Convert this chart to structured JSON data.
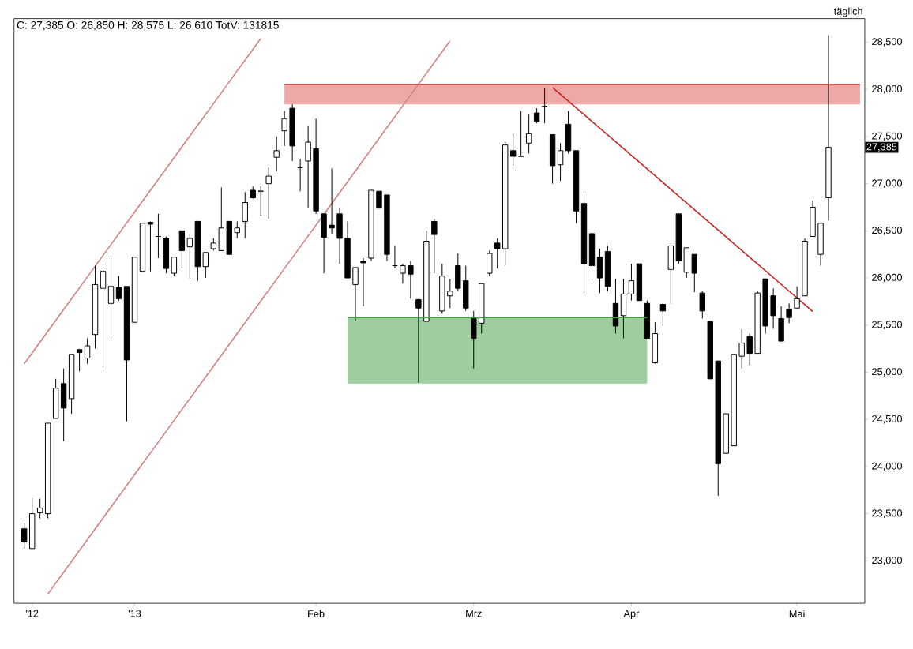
{
  "chart_data": {
    "type": "candlestick",
    "title": "C: 27,385 O: 26,850 H: 28,575 L: 26,610 TotV: 131815",
    "annotations": [
      "täglich",
      {
        "text": "27,385",
        "y": 27385
      }
    ],
    "categories": [
      null,
      "'12",
      null,
      null,
      null,
      null,
      null,
      null,
      null,
      null,
      null,
      null,
      null,
      null,
      "'13",
      null,
      null,
      null,
      null,
      null,
      null,
      null,
      null,
      null,
      null,
      null,
      null,
      null,
      null,
      null,
      null,
      null,
      null,
      null,
      null,
      null,
      null,
      "Feb",
      null,
      null,
      null,
      null,
      null,
      null,
      null,
      null,
      null,
      null,
      null,
      null,
      null,
      null,
      null,
      null,
      null,
      null,
      null,
      "Mrz",
      null,
      null,
      null,
      null,
      null,
      null,
      null,
      null,
      null,
      null,
      null,
      null,
      null,
      null,
      null,
      null,
      null,
      null,
      null,
      "Apr",
      null,
      null,
      null,
      null,
      null,
      null,
      null,
      null,
      null,
      null,
      null,
      null,
      null,
      null,
      null,
      null,
      null,
      null,
      null,
      null,
      "Mai",
      null,
      null,
      null,
      null,
      null,
      null,
      null,
      null
    ],
    "ohlc": [
      [
        23340,
        23400,
        23130,
        23200
      ],
      [
        23130,
        23660,
        23130,
        23500
      ],
      [
        23510,
        23660,
        23450,
        23560
      ],
      [
        23500,
        24460,
        23450,
        24460
      ],
      [
        24510,
        24930,
        24510,
        24830
      ],
      [
        24880,
        25040,
        24270,
        24620
      ],
      [
        24720,
        25190,
        24560,
        25190
      ],
      [
        25240,
        25240,
        25010,
        25210
      ],
      [
        25150,
        25360,
        25090,
        25280
      ],
      [
        25400,
        26130,
        25250,
        25930
      ],
      [
        25890,
        26150,
        25010,
        26070
      ],
      [
        25730,
        26210,
        25360,
        25910
      ],
      [
        25900,
        26020,
        25760,
        25780
      ],
      [
        25910,
        25910,
        24480,
        25130
      ],
      [
        25530,
        26220,
        25530,
        26220
      ],
      [
        26070,
        26580,
        26070,
        26580
      ],
      [
        26590,
        26600,
        26070,
        26570
      ],
      [
        26440,
        26680,
        26210,
        26440
      ],
      [
        26420,
        26440,
        26050,
        26100
      ],
      [
        26050,
        26220,
        26020,
        26220
      ],
      [
        26500,
        26500,
        26100,
        26290
      ],
      [
        26330,
        26470,
        25990,
        26420
      ],
      [
        26600,
        26600,
        25970,
        26120
      ],
      [
        26120,
        26270,
        26000,
        26270
      ],
      [
        26310,
        26420,
        26290,
        26370
      ],
      [
        26290,
        26960,
        26290,
        26530
      ],
      [
        26600,
        26600,
        26250,
        26250
      ],
      [
        26480,
        26600,
        26420,
        26530
      ],
      [
        26600,
        26910,
        26420,
        26800
      ],
      [
        26930,
        26970,
        26840,
        26850
      ],
      [
        26920,
        26970,
        26660,
        26920
      ],
      [
        27000,
        27170,
        26630,
        27080
      ],
      [
        27280,
        27500,
        27130,
        27350
      ],
      [
        27560,
        27770,
        27400,
        27690
      ],
      [
        27800,
        27840,
        27240,
        27400
      ],
      [
        27170,
        27260,
        26920,
        27170
      ],
      [
        27240,
        27610,
        26740,
        27440
      ],
      [
        27370,
        27690,
        26680,
        26710
      ],
      [
        26680,
        26680,
        26050,
        26430
      ],
      [
        26560,
        27160,
        26470,
        26530
      ],
      [
        26680,
        26740,
        26150,
        26420
      ],
      [
        26420,
        26600,
        26000,
        26000
      ],
      [
        25930,
        26110,
        25540,
        26110
      ],
      [
        26180,
        26210,
        25700,
        26160
      ],
      [
        26210,
        26930,
        26180,
        26930
      ],
      [
        26920,
        26920,
        26740,
        26740
      ],
      [
        26880,
        26880,
        26180,
        26250
      ],
      [
        26130,
        26340,
        26100,
        26130
      ],
      [
        26050,
        26150,
        25940,
        26130
      ],
      [
        26130,
        26180,
        25780,
        26040
      ],
      [
        25770,
        25780,
        24890,
        25680
      ],
      [
        25540,
        26500,
        25540,
        26390
      ],
      [
        26600,
        26630,
        26050,
        26460
      ],
      [
        25650,
        26150,
        25620,
        26020
      ],
      [
        25810,
        25990,
        25680,
        25860
      ],
      [
        26130,
        26260,
        25860,
        25890
      ],
      [
        25970,
        26130,
        25650,
        25680
      ],
      [
        25570,
        25650,
        25040,
        25360
      ],
      [
        25520,
        25940,
        25410,
        25940
      ],
      [
        26050,
        26290,
        26020,
        26260
      ],
      [
        26370,
        26420,
        26100,
        26310
      ],
      [
        26310,
        27450,
        26130,
        27410
      ],
      [
        27350,
        27530,
        27190,
        27290
      ],
      [
        27290,
        27770,
        27290,
        27290
      ],
      [
        27430,
        27740,
        27320,
        27530
      ],
      [
        27750,
        27800,
        27640,
        27660
      ],
      [
        27820,
        28010,
        27640,
        27820
      ],
      [
        27520,
        27520,
        27000,
        27190
      ],
      [
        27200,
        27430,
        27030,
        27350
      ],
      [
        27630,
        27770,
        27320,
        27350
      ],
      [
        27350,
        27350,
        26580,
        26710
      ],
      [
        26790,
        26920,
        25840,
        26150
      ],
      [
        26470,
        26470,
        25970,
        26130
      ],
      [
        26220,
        26310,
        25840,
        26000
      ],
      [
        26280,
        26340,
        25860,
        25910
      ],
      [
        25730,
        25990,
        25410,
        25490
      ],
      [
        25600,
        25990,
        25360,
        25830
      ],
      [
        25830,
        26150,
        25760,
        25970
      ],
      [
        26150,
        26150,
        25760,
        25760
      ],
      [
        25730,
        25760,
        25360,
        25360
      ],
      [
        25100,
        25530,
        25090,
        25410
      ],
      [
        25720,
        25730,
        25490,
        25650
      ],
      [
        26090,
        26340,
        25730,
        26340
      ],
      [
        26680,
        26680,
        26150,
        26180
      ],
      [
        26060,
        26320,
        26000,
        26320
      ],
      [
        26250,
        26250,
        25850,
        26050
      ],
      [
        25840,
        25860,
        25570,
        25650
      ],
      [
        25540,
        25540,
        24930,
        24930
      ],
      [
        25120,
        25120,
        23690,
        24030
      ],
      [
        24140,
        24560,
        24140,
        24560
      ],
      [
        24220,
        25190,
        24220,
        25190
      ],
      [
        25170,
        25460,
        25040,
        25310
      ],
      [
        25380,
        25410,
        25070,
        25200
      ],
      [
        25200,
        25860,
        25200,
        25840
      ],
      [
        25990,
        25990,
        25410,
        25490
      ],
      [
        25810,
        25890,
        25460,
        25600
      ],
      [
        25570,
        25700,
        25330,
        25330
      ],
      [
        25670,
        25730,
        25520,
        25580
      ],
      [
        25680,
        25910,
        25680,
        25780
      ],
      [
        25810,
        26420,
        25810,
        26390
      ],
      [
        26440,
        26820,
        26440,
        26750
      ],
      [
        26250,
        26580,
        26130,
        26580
      ],
      [
        26850,
        28575,
        26610,
        27385
      ],
      null,
      null,
      null,
      null
    ],
    "series": [
      {
        "type": "line",
        "color": "#d9534f",
        "upper": [
          null,
          null,
          null,
          null,
          null,
          null,
          null,
          null,
          null,
          null,
          null,
          null,
          null,
          null,
          null,
          null,
          null,
          null,
          null,
          null,
          null,
          null,
          null,
          null,
          null,
          null,
          null,
          null,
          null,
          null,
          null,
          null,
          null,
          28050,
          28050,
          28050,
          28050,
          28050,
          28050,
          28050,
          28050,
          28050,
          28050,
          28050,
          28050,
          28050,
          28050,
          28050,
          28050,
          28050,
          28050,
          28050,
          28050,
          28050,
          28050,
          28050,
          28050,
          28050,
          28050,
          28050,
          28050,
          28050,
          28050,
          28050,
          28050,
          28050,
          28050,
          28050,
          28050,
          28050,
          28050,
          28050,
          28050,
          28050,
          28050,
          28050,
          28050,
          28050,
          28050,
          28050,
          28050,
          28050,
          28050,
          28050,
          28050,
          28050,
          28050,
          28050,
          28050,
          28050,
          28050,
          28050,
          28050,
          28050,
          28050,
          28050,
          28050,
          28050,
          28050,
          28050,
          28050,
          28050,
          28050,
          28050,
          28050,
          28050,
          28050
        ],
        "values": [
          null,
          null,
          null,
          null,
          null,
          null,
          null,
          null,
          null,
          null,
          null,
          null,
          null,
          null,
          null,
          null,
          null,
          null,
          null,
          null,
          null,
          null,
          null,
          null,
          null,
          null,
          null,
          null,
          null,
          null,
          null,
          null,
          null,
          28050,
          28050,
          28050,
          28050,
          28050,
          28050,
          28050,
          28050,
          28050,
          28050,
          28050,
          28050,
          28050,
          28050,
          28050,
          28050,
          28050,
          28050,
          28050,
          28050,
          28050,
          28050,
          28050,
          28050,
          28050,
          28050,
          28050,
          28050,
          28050,
          28050,
          28050,
          28050,
          28050,
          28050,
          28050,
          28050,
          28050,
          28050,
          28050,
          28050,
          28050,
          28050,
          28050,
          28050,
          28050,
          28050,
          28050,
          28050,
          28050,
          28050,
          28050,
          28050,
          28050,
          28050,
          28050,
          28050,
          28050,
          28050,
          28050,
          28050,
          28050,
          28050,
          28050,
          28050,
          28050,
          28050,
          28050,
          28050,
          28050,
          28050,
          28050,
          28050,
          28050,
          28050
        ],
        "lower": [
          null,
          null,
          null,
          null,
          null,
          null,
          null,
          null,
          null,
          null,
          null,
          null,
          null,
          null,
          null,
          null,
          null,
          null,
          null,
          null,
          null,
          null,
          null,
          null,
          null,
          null,
          null,
          null,
          null,
          null,
          null,
          null,
          null,
          27840,
          27840,
          27840,
          27840,
          27840,
          27840,
          27840,
          27840,
          27840,
          27840,
          27840,
          27840,
          27840,
          27840,
          27840,
          27840,
          27840,
          27840,
          27840,
          27840,
          27840,
          27840,
          27840,
          27840,
          27840,
          27840,
          27840,
          27840,
          27840,
          27840,
          27840,
          27840,
          27840,
          27840,
          27840,
          27840,
          27840,
          27840,
          27840,
          27840,
          27840,
          27840,
          27840,
          27840,
          27840,
          27840,
          27840,
          27840,
          27840,
          27840,
          27840,
          27840,
          27840,
          27840,
          27840,
          27840,
          27840,
          27840,
          27840,
          27840,
          27840,
          27840,
          27840,
          27840,
          27840,
          27840,
          27840,
          27840,
          27840,
          27840,
          27840,
          27840,
          27840,
          27840
        ]
      },
      {
        "type": "line",
        "color": "#3d9e42",
        "upper": [
          null,
          null,
          null,
          null,
          null,
          null,
          null,
          null,
          null,
          null,
          null,
          null,
          null,
          null,
          null,
          null,
          null,
          null,
          null,
          null,
          null,
          null,
          null,
          null,
          null,
          null,
          null,
          null,
          null,
          null,
          null,
          null,
          null,
          null,
          null,
          null,
          null,
          null,
          null,
          null,
          null,
          25580,
          25580,
          25580,
          25580,
          25580,
          25580,
          25580,
          25580,
          25580,
          25580,
          25580,
          25580,
          25580,
          25580,
          25580,
          25580,
          25580,
          25580,
          25580,
          25580,
          25580,
          25580,
          25580,
          25580,
          25580,
          25580,
          25580,
          25580,
          25580,
          25580,
          25580,
          25580,
          25580,
          25580,
          25580,
          25580,
          25580,
          25580,
          25580,
          null,
          null,
          null,
          null,
          null,
          null,
          null,
          null,
          null,
          null,
          null,
          null,
          null,
          null,
          null,
          null,
          null,
          null,
          null,
          null,
          null,
          null,
          null,
          null,
          null,
          null,
          null
        ],
        "values": [
          null,
          null,
          null,
          null,
          null,
          null,
          null,
          null,
          null,
          null,
          null,
          null,
          null,
          null,
          null,
          null,
          null,
          null,
          null,
          null,
          null,
          null,
          null,
          null,
          null,
          null,
          null,
          null,
          null,
          null,
          null,
          null,
          null,
          null,
          null,
          null,
          null,
          null,
          null,
          null,
          null,
          25580,
          25580,
          25580,
          25580,
          25580,
          25580,
          25580,
          25580,
          25580,
          25580,
          25580,
          25580,
          25580,
          25580,
          25580,
          25580,
          25580,
          25580,
          25580,
          25580,
          25580,
          25580,
          25580,
          25580,
          25580,
          25580,
          25580,
          25580,
          25580,
          25580,
          25580,
          25580,
          25580,
          25580,
          25580,
          25580,
          25580,
          25580,
          25580,
          null,
          null,
          null,
          null,
          null,
          null,
          null,
          null,
          null,
          null,
          null,
          null,
          null,
          null,
          null,
          null,
          null,
          null,
          null,
          null,
          null,
          null,
          null,
          null,
          null,
          null,
          null
        ],
        "lower": [
          null,
          null,
          null,
          null,
          null,
          null,
          null,
          null,
          null,
          null,
          null,
          null,
          null,
          null,
          null,
          null,
          null,
          null,
          null,
          null,
          null,
          null,
          null,
          null,
          null,
          null,
          null,
          null,
          null,
          null,
          null,
          null,
          null,
          null,
          null,
          null,
          null,
          null,
          null,
          null,
          null,
          24880,
          24880,
          24880,
          24880,
          24880,
          24880,
          24880,
          24880,
          24880,
          24880,
          24880,
          24880,
          24880,
          24880,
          24880,
          24880,
          24880,
          24880,
          24880,
          24880,
          24880,
          24880,
          24880,
          24880,
          24880,
          24880,
          24880,
          24880,
          24880,
          24880,
          24880,
          24880,
          24880,
          24880,
          24880,
          24880,
          24880,
          24880,
          24880,
          null,
          null,
          null,
          null,
          null,
          null,
          null,
          null,
          null,
          null,
          null,
          null,
          null,
          null,
          null,
          null,
          null,
          null,
          null,
          null,
          null,
          null,
          null,
          null,
          null,
          null,
          null
        ]
      },
      {
        "type": "line",
        "color": "#d08080",
        "values": [
          25090,
          25205,
          25320,
          25435,
          25550,
          25665,
          25780,
          25895,
          26010,
          26125,
          26240,
          26355,
          26470,
          26585,
          26700,
          26815,
          26930,
          27045,
          27160,
          27275,
          27390,
          27505,
          27620,
          27735,
          27850,
          27965,
          28080,
          28195,
          28310,
          28425,
          28540,
          null,
          null,
          null,
          null,
          null,
          null,
          null,
          null,
          null,
          null,
          null,
          null,
          null,
          null,
          null,
          null,
          null,
          null,
          null,
          null,
          null,
          null,
          null,
          null,
          null,
          null,
          null,
          null,
          null,
          null,
          null,
          null,
          null,
          null,
          null,
          null,
          null,
          null,
          null,
          null,
          null,
          null,
          null,
          null,
          null,
          null,
          null,
          null,
          null,
          null,
          null,
          null,
          null,
          null,
          null,
          null,
          null,
          null,
          null,
          null,
          null,
          null,
          null,
          null,
          null,
          null,
          null,
          null,
          null,
          null,
          null,
          null,
          null,
          null,
          null,
          null
        ]
      },
      {
        "type": "line",
        "color": "#d08080",
        "values": [
          null,
          null,
          null,
          22650,
          22765,
          22880,
          22995,
          23110,
          23225,
          23340,
          23455,
          23570,
          23685,
          23800,
          23915,
          24030,
          24145,
          24260,
          24375,
          24490,
          24605,
          24720,
          24835,
          24950,
          25065,
          25180,
          25295,
          25410,
          25525,
          25640,
          25755,
          25870,
          25985,
          26100,
          26215,
          26330,
          26445,
          26560,
          26675,
          26790,
          26905,
          27020,
          27135,
          27250,
          27365,
          27480,
          27595,
          27710,
          27825,
          27940,
          28055,
          28170,
          28285,
          28400,
          28515,
          null,
          null,
          null,
          null,
          null,
          null,
          null,
          null,
          null,
          null,
          null,
          null,
          null,
          null,
          null,
          null,
          null,
          null,
          null,
          null,
          null,
          null,
          null,
          null,
          null,
          null,
          null,
          null,
          null,
          null,
          null,
          null,
          null,
          null,
          null,
          null,
          null,
          null,
          null,
          null,
          null,
          null,
          null,
          null,
          null,
          null,
          null,
          null,
          null,
          null,
          null,
          null
        ]
      },
      {
        "type": "line",
        "color": "#cc2222",
        "values": [
          null,
          null,
          null,
          null,
          null,
          null,
          null,
          null,
          null,
          null,
          null,
          null,
          null,
          null,
          null,
          null,
          null,
          null,
          null,
          null,
          null,
          null,
          null,
          null,
          null,
          null,
          null,
          null,
          null,
          null,
          null,
          null,
          null,
          null,
          null,
          null,
          null,
          null,
          null,
          null,
          null,
          null,
          null,
          null,
          null,
          null,
          null,
          null,
          null,
          null,
          null,
          null,
          null,
          null,
          null,
          null,
          null,
          null,
          null,
          null,
          null,
          null,
          null,
          null,
          null,
          null,
          null,
          28020,
          27948,
          27876,
          27804,
          27732,
          27660,
          27588,
          27516,
          27444,
          27372,
          27300,
          27228,
          27156,
          27084,
          27012,
          26940,
          26868,
          26796,
          26724,
          26652,
          26580,
          26508,
          26436,
          26364,
          26292,
          26220,
          26148,
          26076,
          26004,
          25932,
          25860,
          25788,
          25716,
          25644,
          null,
          null,
          null,
          null,
          null,
          null
        ]
      }
    ],
    "ylim": [
      22550,
      28750
    ],
    "yticks": [
      {
        "value": 23000,
        "label": "23,000"
      },
      {
        "value": 23500,
        "label": "23,500"
      },
      {
        "value": 24000,
        "label": "24,000"
      },
      {
        "value": 24500,
        "label": "24,500"
      },
      {
        "value": 25000,
        "label": "25,000"
      },
      {
        "value": 25500,
        "label": "25,500"
      },
      {
        "value": 26000,
        "label": "26,000"
      },
      {
        "value": 26500,
        "label": "26,500"
      },
      {
        "value": 27000,
        "label": "27,000"
      },
      {
        "value": 27500,
        "label": "27,500"
      },
      {
        "value": 28000,
        "label": "28,000"
      },
      {
        "value": 28500,
        "label": "28,500"
      }
    ]
  }
}
